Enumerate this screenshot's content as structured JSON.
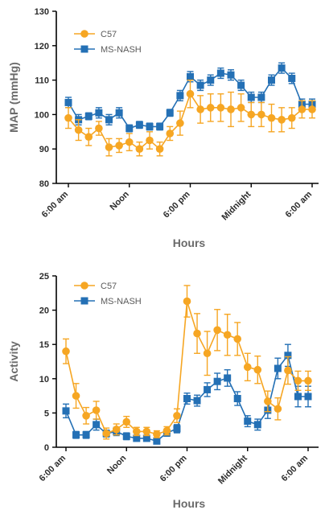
{
  "chart_data": [
    {
      "type": "line",
      "ylabel": "MAP (mmHg)",
      "xlabel": "Hours",
      "ylim": [
        80,
        130
      ],
      "yticks": [
        "80",
        "90",
        "100",
        "110",
        "120",
        "130"
      ],
      "xlim": [
        0,
        24
      ],
      "xticks": [
        {
          "x": 0,
          "label": "6:00 am"
        },
        {
          "x": 6,
          "label": "Noon"
        },
        {
          "x": 12,
          "label": "6:00 pm"
        },
        {
          "x": 18,
          "label": "Midnight"
        },
        {
          "x": 24,
          "label": "6:00 am"
        }
      ],
      "legend": "top-left",
      "series": [
        {
          "name": "C57",
          "color": "#f6a623",
          "x": [
            0,
            1,
            2,
            3,
            4,
            5,
            6,
            7,
            8,
            9,
            10,
            11,
            12,
            13,
            14,
            15,
            16,
            17,
            18,
            19,
            20,
            21,
            22,
            23,
            24
          ],
          "values": [
            99,
            95.5,
            93.5,
            96,
            90.5,
            91,
            92,
            90,
            92.5,
            90,
            94.5,
            97.5,
            106,
            101.5,
            102,
            102,
            101.5,
            102,
            100,
            100,
            99,
            98.5,
            99,
            101.5,
            101.5
          ],
          "errors": [
            3,
            3,
            2.5,
            2,
            2.5,
            2,
            2.5,
            2,
            2.5,
            2,
            2,
            3.5,
            4,
            4,
            4,
            4,
            5,
            4,
            3.5,
            3.5,
            4,
            3.5,
            3,
            2.5,
            2.5
          ]
        },
        {
          "name": "MS-NASH",
          "color": "#2470b5",
          "x": [
            0,
            1,
            2,
            3,
            4,
            5,
            6,
            7,
            8,
            9,
            10,
            11,
            12,
            13,
            14,
            15,
            16,
            17,
            18,
            19,
            20,
            21,
            22,
            23,
            24
          ],
          "values": [
            103.5,
            98.5,
            99.5,
            100.5,
            98.5,
            100.5,
            96,
            97,
            96.5,
            96.5,
            100.5,
            105.5,
            111,
            108.5,
            110,
            112,
            111.5,
            108.5,
            105,
            105,
            110,
            113.5,
            110.5,
            103,
            103
          ],
          "errors": [
            1.5,
            1.5,
            1,
            1.5,
            1.5,
            1.5,
            1,
            1,
            1,
            1,
            1,
            1.5,
            1.5,
            1.5,
            1.5,
            1.5,
            1.5,
            1.5,
            1.5,
            1.5,
            1.5,
            1.5,
            1.5,
            1.5,
            1.5
          ]
        }
      ]
    },
    {
      "type": "line",
      "ylabel": "Activity",
      "xlabel": "Hours",
      "ylim": [
        0,
        25
      ],
      "yticks": [
        "0",
        "5",
        "10",
        "15",
        "20",
        "25"
      ],
      "xlim": [
        0,
        24
      ],
      "xticks": [
        {
          "x": 0,
          "label": "6:00 am"
        },
        {
          "x": 6,
          "label": "Noon"
        },
        {
          "x": 12,
          "label": "6:00 pm"
        },
        {
          "x": 18,
          "label": "Midnight"
        },
        {
          "x": 24,
          "label": "6:00 am"
        }
      ],
      "legend": "top-left",
      "series": [
        {
          "name": "C57",
          "color": "#f6a623",
          "x": [
            0,
            1,
            2,
            3,
            4,
            5,
            6,
            7,
            8,
            9,
            10,
            11,
            12,
            13,
            14,
            15,
            16,
            17,
            18,
            19,
            20,
            21,
            22,
            23,
            24
          ],
          "values": [
            14,
            7.5,
            4.6,
            5.4,
            2,
            2.6,
            3.7,
            2.3,
            2.3,
            1.9,
            2.4,
            4.6,
            21.3,
            16.6,
            13.7,
            17.1,
            16.4,
            15.8,
            11.7,
            11.3,
            6.7,
            5.6,
            11.2,
            9.7,
            9.7
          ],
          "errors": [
            1.8,
            1.8,
            1.2,
            1.3,
            0.8,
            0.8,
            0.8,
            0.6,
            0.6,
            0.5,
            0.6,
            1,
            2.3,
            2.9,
            3.2,
            3,
            3,
            2.4,
            2,
            2,
            1.5,
            1.6,
            2,
            1.4,
            1.4
          ]
        },
        {
          "name": "MS-NASH",
          "color": "#2470b5",
          "x": [
            0,
            1,
            2,
            3,
            4,
            5,
            6,
            7,
            8,
            9,
            10,
            11,
            12,
            13,
            14,
            15,
            16,
            17,
            18,
            19,
            20,
            21,
            22,
            23,
            24
          ],
          "values": [
            5.3,
            1.8,
            1.8,
            3.3,
            2,
            2.3,
            1.6,
            1.3,
            1.3,
            0.9,
            2.1,
            2.7,
            7.1,
            6.8,
            8.4,
            9.6,
            10.1,
            7.1,
            3.8,
            3.3,
            5.4,
            11.5,
            13.4,
            7.4,
            7.4
          ],
          "errors": [
            1,
            0.5,
            0.5,
            0.8,
            0.5,
            0.6,
            0.5,
            0.4,
            0.4,
            0.4,
            0.5,
            0.6,
            0.8,
            0.8,
            1,
            1.2,
            1.2,
            1,
            0.8,
            0.8,
            1.2,
            1.5,
            1.6,
            1.5,
            1.5
          ]
        }
      ]
    }
  ]
}
